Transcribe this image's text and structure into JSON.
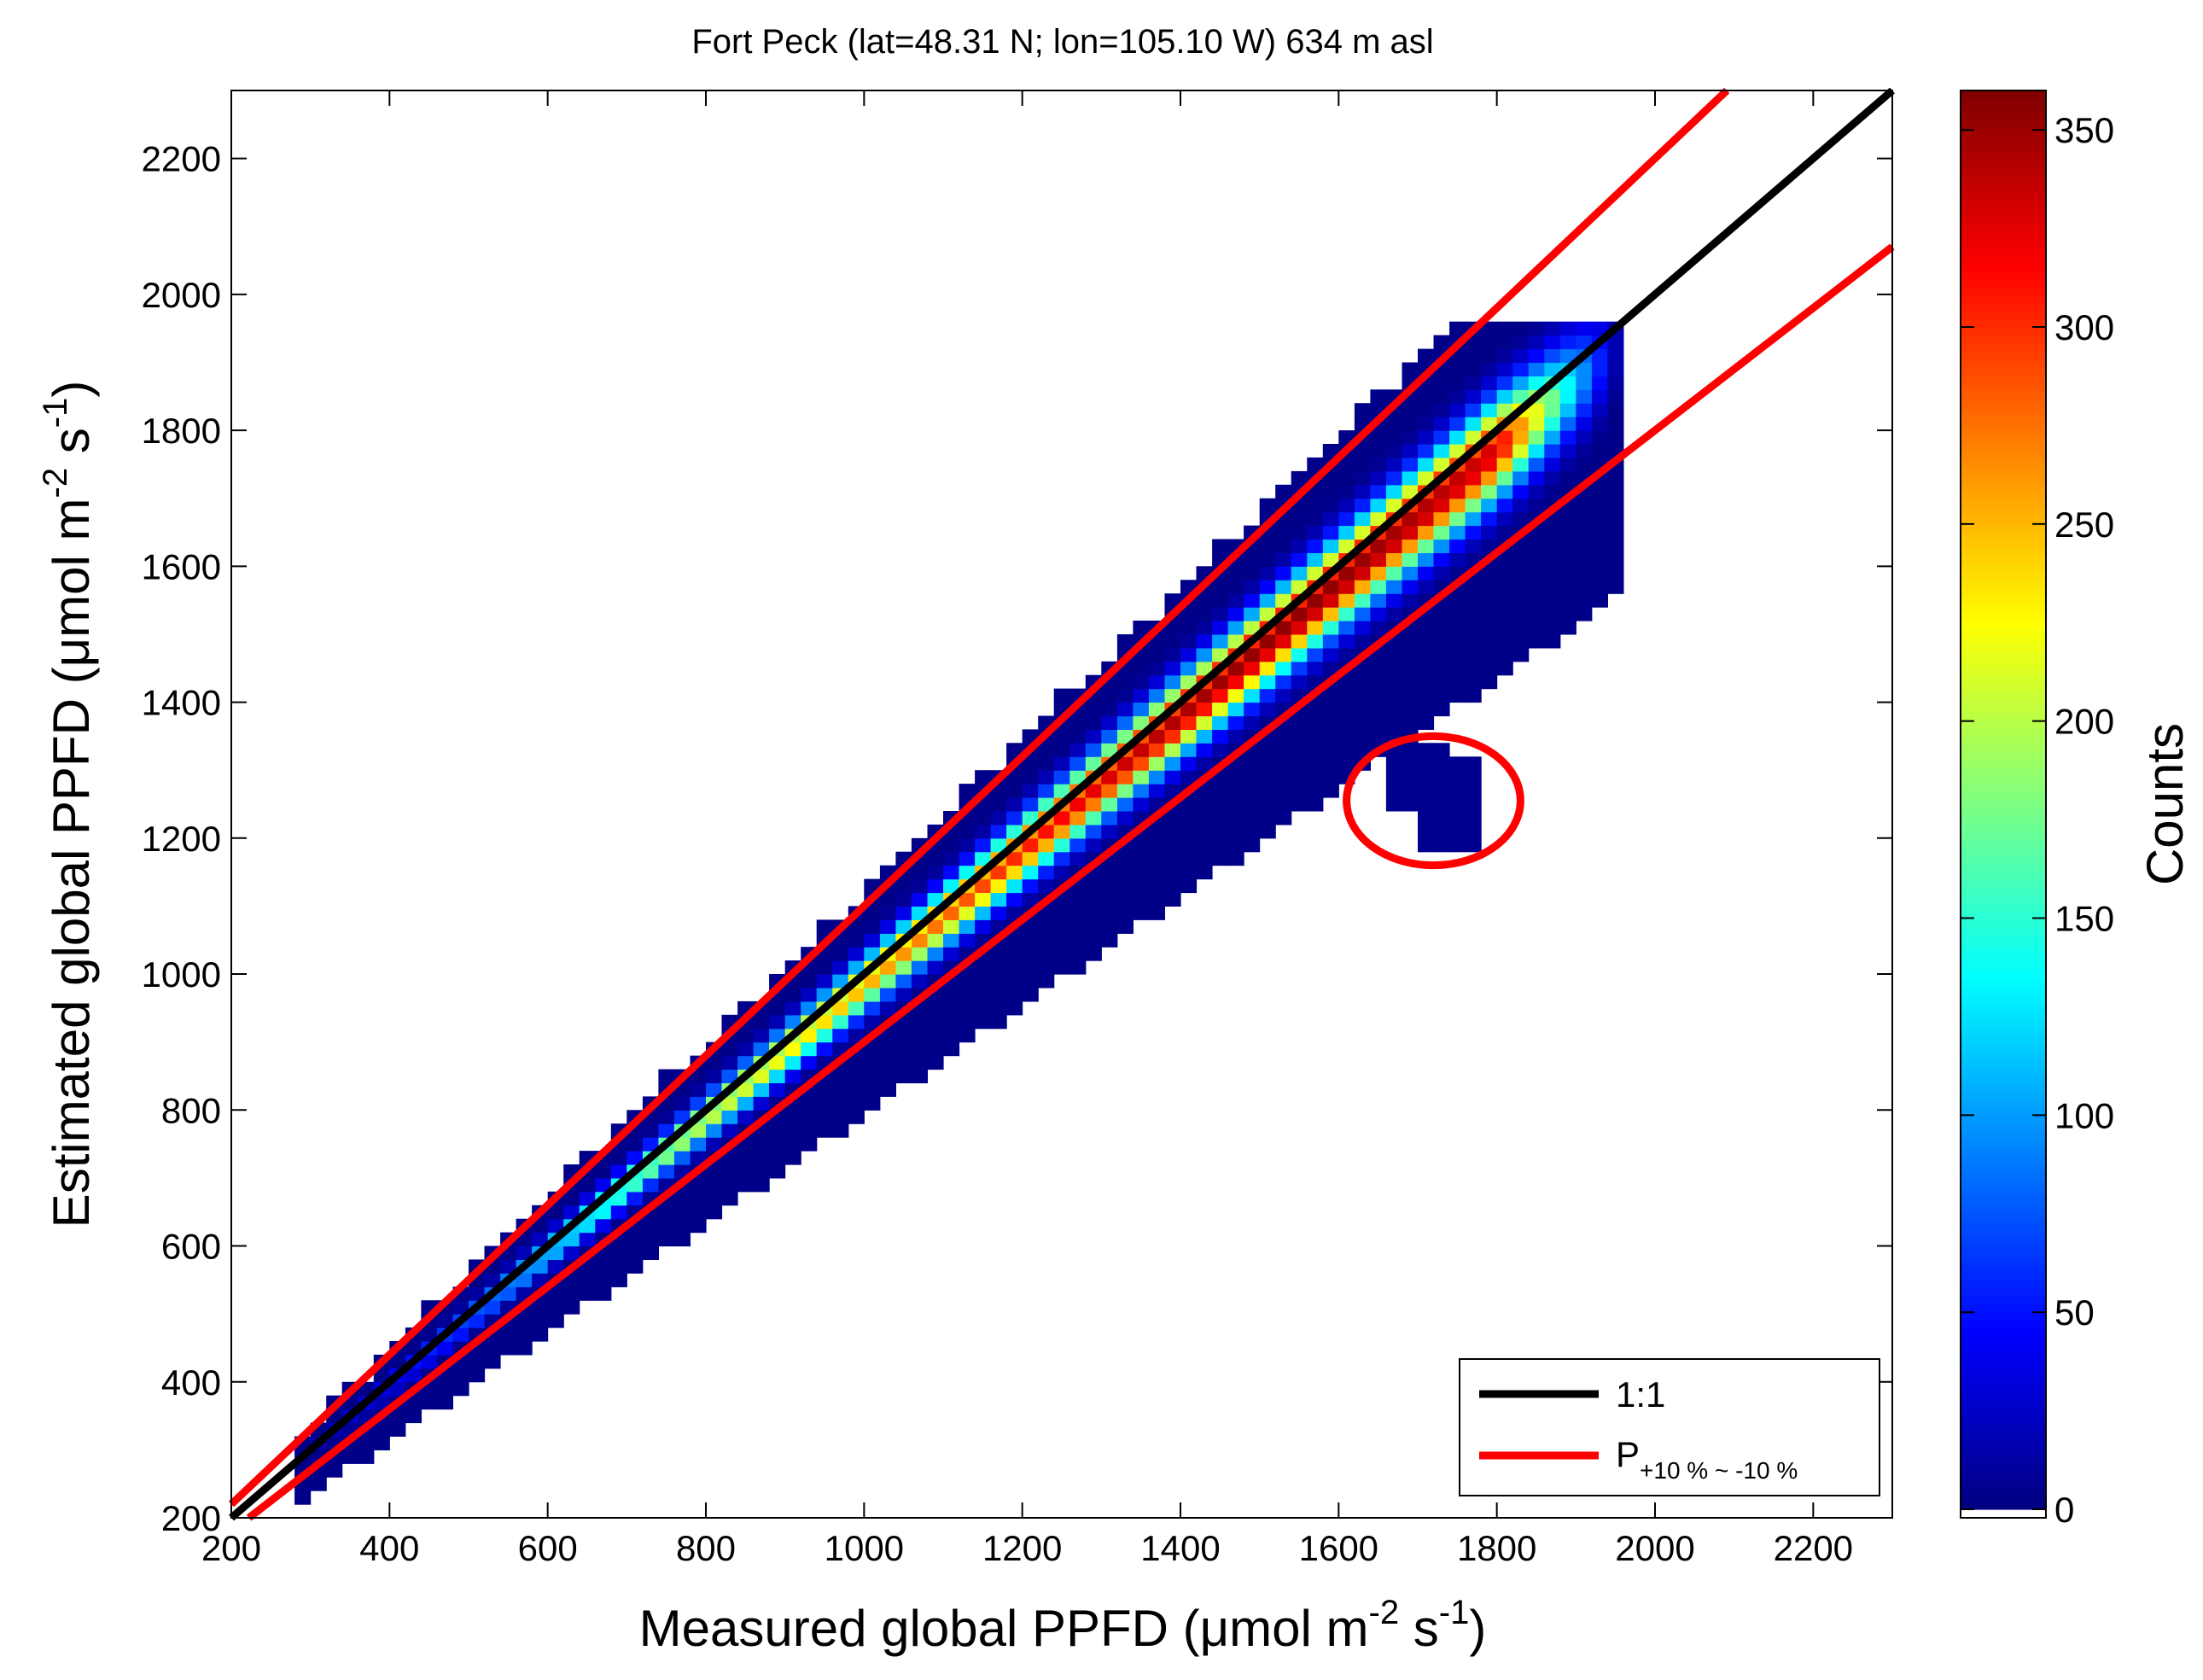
{
  "chart_data": {
    "type": "heatmap",
    "title": "Fort Peck (lat=48.31 N; lon=105.10 W) 634 m asl",
    "xlabel": {
      "base": "Measured global PPFD (μmol m",
      "exp1": "-2",
      "mid": " s",
      "exp2": "-1",
      "end": ")"
    },
    "ylabel": {
      "base": "Estimated global PPFD (μmol m",
      "exp1": "-2",
      "mid": " s",
      "exp2": "-1",
      "end": ")"
    },
    "xlim": [
      200,
      2300
    ],
    "ylim": [
      200,
      2300
    ],
    "xticks": [
      200,
      400,
      600,
      800,
      1000,
      1200,
      1400,
      1600,
      1800,
      2000,
      2200
    ],
    "yticks": [
      200,
      400,
      600,
      800,
      1000,
      1200,
      1400,
      1600,
      1800,
      2000,
      2200
    ],
    "bin_size": 20,
    "colormap": "jet",
    "colorbar": {
      "label": "Counts",
      "range": [
        0,
        360
      ],
      "ticks": [
        0,
        50,
        100,
        150,
        200,
        250,
        300,
        350
      ]
    },
    "density_band": {
      "x_range": [
        280,
        1960
      ],
      "max_count": 355,
      "peak_x": 1560,
      "spread_below_frac": 0.2,
      "spread_above_frac": 0.12
    },
    "outlier_cluster": {
      "x_range": [
        1660,
        1780
      ],
      "y_range": [
        1180,
        1340
      ],
      "count": 5,
      "circled": true,
      "circle_center": [
        1720,
        1255
      ],
      "circle_color": "#ff0000"
    },
    "lines": [
      {
        "name": "1:1",
        "slope": 1.0,
        "color": "#000000"
      },
      {
        "name": "+10 %",
        "slope": 1.1,
        "color": "#ff0000"
      },
      {
        "name": "-10 %",
        "slope": 0.9,
        "color": "#ff0000"
      }
    ],
    "legend": {
      "position": "bottom-right",
      "entries": [
        {
          "label": "1:1",
          "color": "#000000"
        },
        {
          "label": "P",
          "sub": "+10 % ~ -10 %",
          "color": "#ff0000"
        }
      ]
    }
  }
}
